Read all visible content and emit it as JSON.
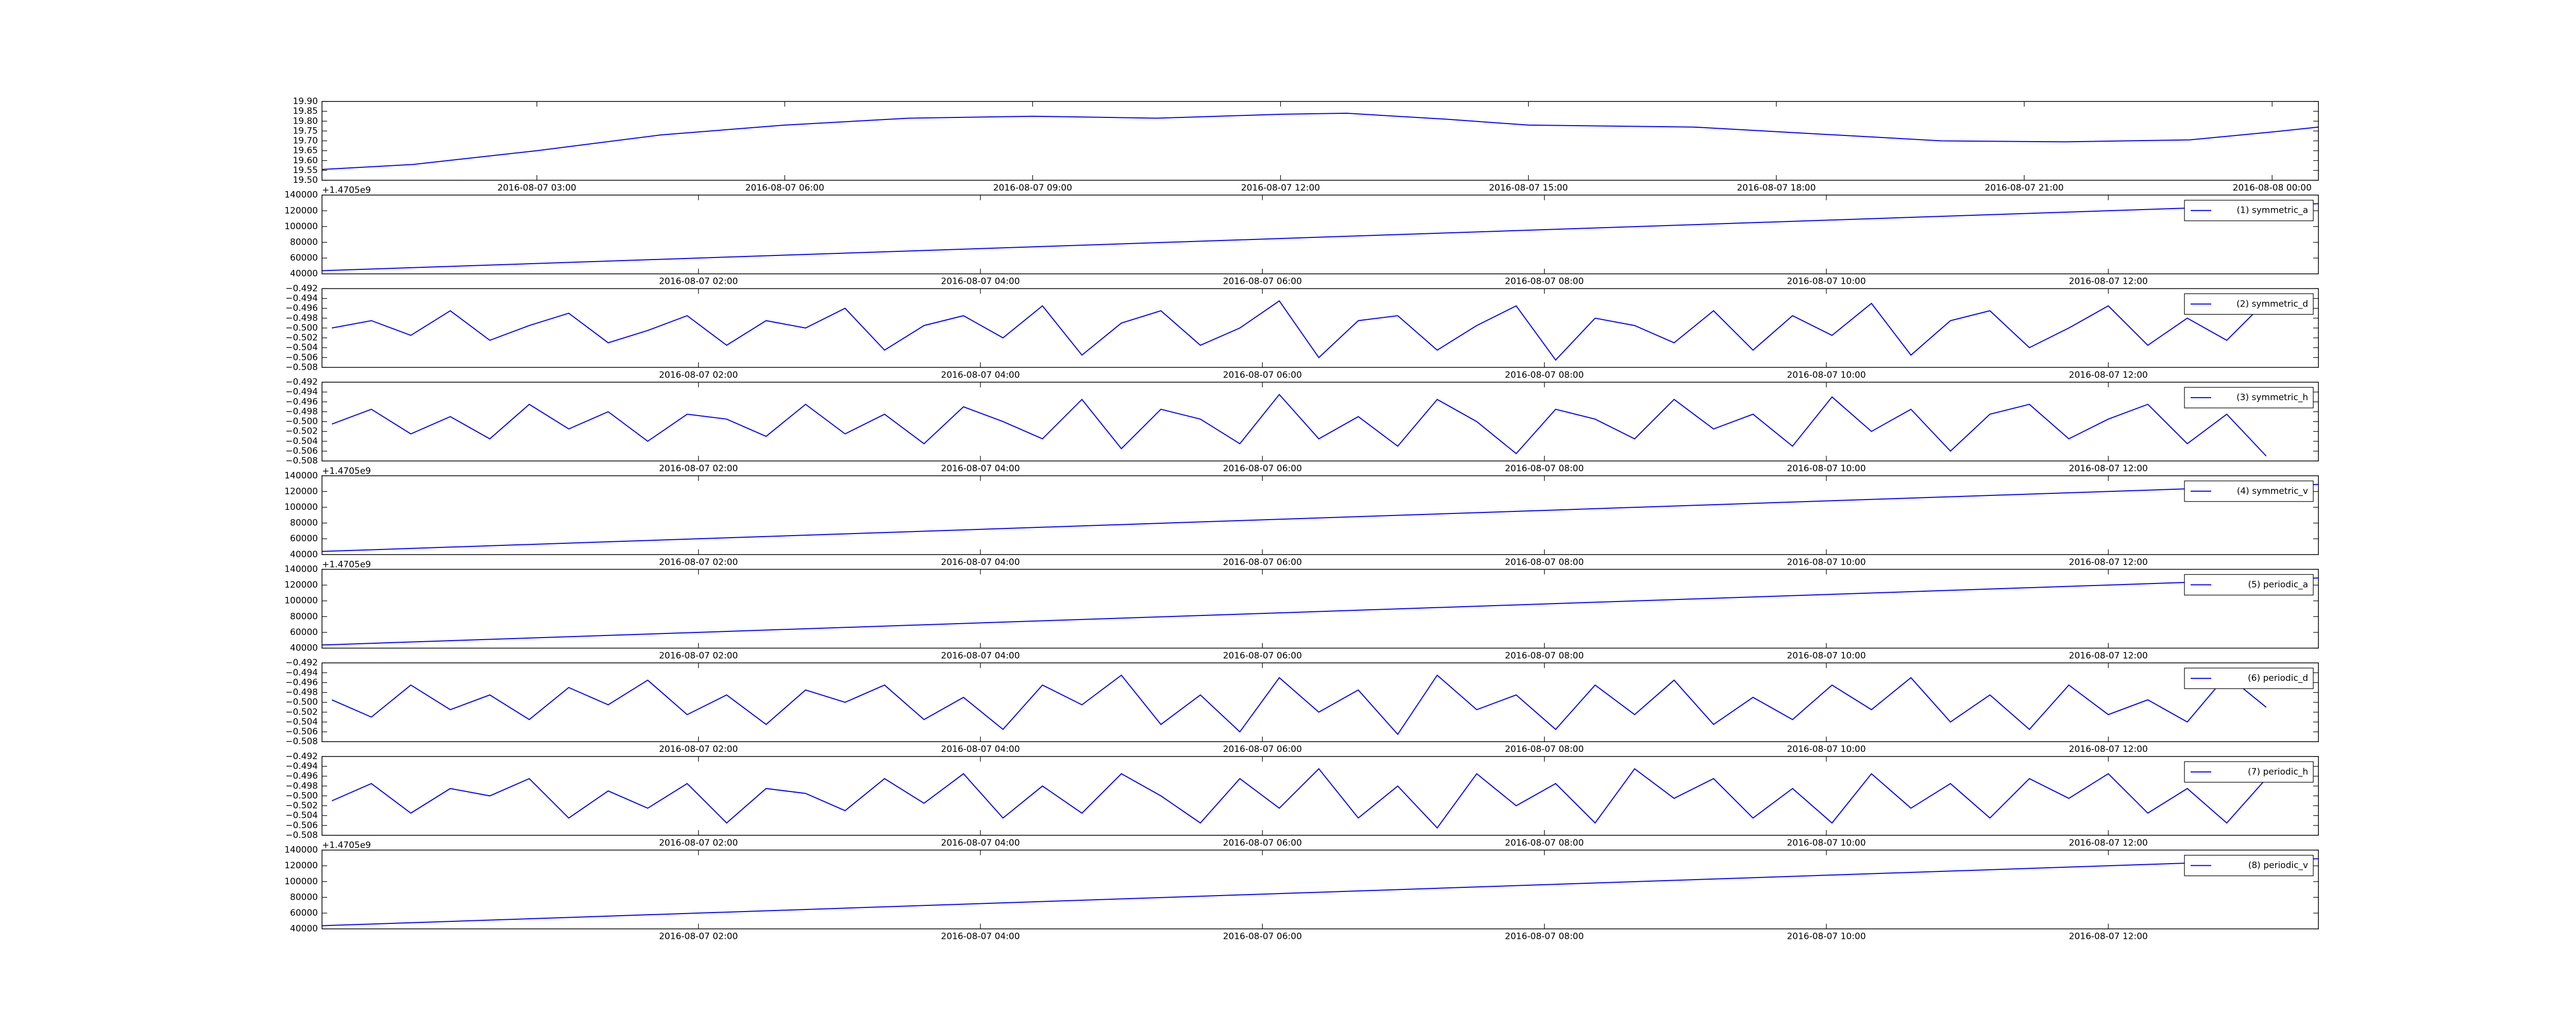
{
  "chart_data": [
    {
      "type": "line",
      "xlim": [
        0.4,
        24.56
      ],
      "ylim": [
        19.5,
        19.9
      ],
      "x": [
        0.4,
        1.5,
        3,
        4.5,
        6,
        7.5,
        9,
        10.5,
        12,
        12.8,
        14,
        15,
        17,
        18.5,
        20,
        21.5,
        23,
        24,
        24.56
      ],
      "series": [
        {
          "color": "#0000ff",
          "values": [
            19.555,
            19.58,
            19.65,
            19.73,
            19.78,
            19.815,
            19.825,
            19.815,
            19.835,
            19.84,
            19.81,
            19.78,
            19.77,
            19.735,
            19.7,
            19.695,
            19.705,
            19.745,
            19.77
          ]
        }
      ],
      "yticks": [
        {
          "value": 19.5,
          "label": "19.50"
        },
        {
          "value": 19.55,
          "label": "19.55"
        },
        {
          "value": 19.6,
          "label": "19.60"
        },
        {
          "value": 19.65,
          "label": "19.65"
        },
        {
          "value": 19.7,
          "label": "19.70"
        },
        {
          "value": 19.75,
          "label": "19.75"
        },
        {
          "value": 19.8,
          "label": "19.80"
        },
        {
          "value": 19.85,
          "label": "19.85"
        },
        {
          "value": 19.9,
          "label": "19.90"
        }
      ],
      "xticks": [
        {
          "value": 3,
          "label": "2016-08-07 03:00"
        },
        {
          "value": 6,
          "label": "2016-08-07 06:00"
        },
        {
          "value": 9,
          "label": "2016-08-07 09:00"
        },
        {
          "value": 12,
          "label": "2016-08-07 12:00"
        },
        {
          "value": 15,
          "label": "2016-08-07 15:00"
        },
        {
          "value": 18,
          "label": "2016-08-07 18:00"
        },
        {
          "value": 21,
          "label": "2016-08-07 21:00"
        },
        {
          "value": 24,
          "label": "2016-08-08 00:00"
        }
      ]
    },
    {
      "type": "line",
      "xlim": [
        -0.67,
        13.49
      ],
      "ylim": [
        40000,
        140000
      ],
      "offset_text": "+1.4705e9",
      "legend": "upper right",
      "x": [
        -0.67,
        13.49
      ],
      "series": [
        {
          "name": "(1) symmetric_a",
          "color": "#0000ff",
          "values": [
            44000,
            129000
          ]
        }
      ],
      "yticks": [
        40000,
        60000,
        80000,
        100000,
        120000,
        140000
      ],
      "xticks": [
        {
          "value": 2,
          "label": "2016-08-07 02:00"
        },
        {
          "value": 4,
          "label": "2016-08-07 04:00"
        },
        {
          "value": 6,
          "label": "2016-08-07 06:00"
        },
        {
          "value": 8,
          "label": "2016-08-07 08:00"
        },
        {
          "value": 10,
          "label": "2016-08-07 10:00"
        },
        {
          "value": 12,
          "label": "2016-08-07 12:00"
        }
      ]
    },
    {
      "type": "line",
      "xlim": [
        -0.67,
        13.49
      ],
      "ylim": [
        -0.508,
        -0.492
      ],
      "legend": "upper right",
      "x": [
        -0.6,
        -0.32,
        -0.04,
        0.24,
        0.52,
        0.8,
        1.08,
        1.36,
        1.64,
        1.92,
        2.2,
        2.48,
        2.76,
        3.04,
        3.32,
        3.6,
        3.88,
        4.16,
        4.44,
        4.72,
        5,
        5.28,
        5.56,
        5.84,
        6.12,
        6.4,
        6.68,
        6.96,
        7.24,
        7.52,
        7.8,
        8.08,
        8.36,
        8.64,
        8.92,
        9.2,
        9.48,
        9.76,
        10.04,
        10.32,
        10.6,
        10.88,
        11.16,
        11.44,
        11.72,
        12,
        12.28,
        12.56,
        12.84,
        13.12
      ],
      "series": [
        {
          "name": "(2) symmetric_d",
          "color": "#0000ff",
          "values": [
            -0.5,
            -0.4985,
            -0.5015,
            -0.4965,
            -0.5025,
            -0.4995,
            -0.497,
            -0.503,
            -0.5005,
            -0.4975,
            -0.5035,
            -0.4985,
            -0.5,
            -0.496,
            -0.5045,
            -0.4995,
            -0.4975,
            -0.502,
            -0.4955,
            -0.5055,
            -0.499,
            -0.4965,
            -0.5035,
            -0.5,
            -0.4945,
            -0.506,
            -0.4985,
            -0.4975,
            -0.5045,
            -0.4995,
            -0.4955,
            -0.5065,
            -0.498,
            -0.4995,
            -0.503,
            -0.4965,
            -0.5045,
            -0.4975,
            -0.5015,
            -0.495,
            -0.5055,
            -0.4985,
            -0.4965,
            -0.504,
            -0.5,
            -0.4955,
            -0.5035,
            -0.498,
            -0.5025,
            -0.4945
          ]
        }
      ],
      "yticks": [
        {
          "value": -0.508,
          "label": "−0.508"
        },
        {
          "value": -0.506,
          "label": "−0.506"
        },
        {
          "value": -0.504,
          "label": "−0.504"
        },
        {
          "value": -0.502,
          "label": "−0.502"
        },
        {
          "value": -0.5,
          "label": "−0.500"
        },
        {
          "value": -0.498,
          "label": "−0.498"
        },
        {
          "value": -0.496,
          "label": "−0.496"
        },
        {
          "value": -0.494,
          "label": "−0.494"
        },
        {
          "value": -0.492,
          "label": "−0.492"
        }
      ],
      "xticks": [
        {
          "value": 2,
          "label": "2016-08-07 02:00"
        },
        {
          "value": 4,
          "label": "2016-08-07 04:00"
        },
        {
          "value": 6,
          "label": "2016-08-07 06:00"
        },
        {
          "value": 8,
          "label": "2016-08-07 08:00"
        },
        {
          "value": 10,
          "label": "2016-08-07 10:00"
        },
        {
          "value": 12,
          "label": "2016-08-07 12:00"
        }
      ]
    },
    {
      "type": "line",
      "xlim": [
        -0.67,
        13.49
      ],
      "ylim": [
        -0.508,
        -0.492
      ],
      "legend": "upper right",
      "x": [
        -0.6,
        -0.32,
        -0.04,
        0.24,
        0.52,
        0.8,
        1.08,
        1.36,
        1.64,
        1.92,
        2.2,
        2.48,
        2.76,
        3.04,
        3.32,
        3.6,
        3.88,
        4.16,
        4.44,
        4.72,
        5,
        5.28,
        5.56,
        5.84,
        6.12,
        6.4,
        6.68,
        6.96,
        7.24,
        7.52,
        7.8,
        8.08,
        8.36,
        8.64,
        8.92,
        9.2,
        9.48,
        9.76,
        10.04,
        10.32,
        10.6,
        10.88,
        11.16,
        11.44,
        11.72,
        12,
        12.28,
        12.56,
        12.84,
        13.12
      ],
      "series": [
        {
          "name": "(3) symmetric_h",
          "color": "#0000ff",
          "values": [
            -0.5005,
            -0.4975,
            -0.5025,
            -0.499,
            -0.5035,
            -0.4965,
            -0.5015,
            -0.498,
            -0.504,
            -0.4985,
            -0.4995,
            -0.503,
            -0.4965,
            -0.5025,
            -0.4985,
            -0.5045,
            -0.497,
            -0.5,
            -0.5035,
            -0.4955,
            -0.5055,
            -0.4975,
            -0.4995,
            -0.5045,
            -0.4945,
            -0.5035,
            -0.499,
            -0.505,
            -0.4955,
            -0.5,
            -0.5065,
            -0.4975,
            -0.4995,
            -0.5035,
            -0.4955,
            -0.5015,
            -0.4985,
            -0.505,
            -0.495,
            -0.502,
            -0.4975,
            -0.506,
            -0.4985,
            -0.4965,
            -0.5035,
            -0.4995,
            -0.4965,
            -0.5045,
            -0.4985,
            -0.507
          ]
        }
      ],
      "yticks": [
        {
          "value": -0.508,
          "label": "−0.508"
        },
        {
          "value": -0.506,
          "label": "−0.506"
        },
        {
          "value": -0.504,
          "label": "−0.504"
        },
        {
          "value": -0.502,
          "label": "−0.502"
        },
        {
          "value": -0.5,
          "label": "−0.500"
        },
        {
          "value": -0.498,
          "label": "−0.498"
        },
        {
          "value": -0.496,
          "label": "−0.496"
        },
        {
          "value": -0.494,
          "label": "−0.494"
        },
        {
          "value": -0.492,
          "label": "−0.492"
        }
      ],
      "xticks": [
        {
          "value": 2,
          "label": "2016-08-07 02:00"
        },
        {
          "value": 4,
          "label": "2016-08-07 04:00"
        },
        {
          "value": 6,
          "label": "2016-08-07 06:00"
        },
        {
          "value": 8,
          "label": "2016-08-07 08:00"
        },
        {
          "value": 10,
          "label": "2016-08-07 10:00"
        },
        {
          "value": 12,
          "label": "2016-08-07 12:00"
        }
      ]
    },
    {
      "type": "line",
      "xlim": [
        -0.67,
        13.49
      ],
      "ylim": [
        40000,
        140000
      ],
      "offset_text": "+1.4705e9",
      "legend": "upper right",
      "x": [
        -0.67,
        13.49
      ],
      "series": [
        {
          "name": "(4) symmetric_v",
          "color": "#0000ff",
          "values": [
            44000,
            129000
          ]
        }
      ],
      "yticks": [
        40000,
        60000,
        80000,
        100000,
        120000,
        140000
      ],
      "xticks": [
        {
          "value": 2,
          "label": "2016-08-07 02:00"
        },
        {
          "value": 4,
          "label": "2016-08-07 04:00"
        },
        {
          "value": 6,
          "label": "2016-08-07 06:00"
        },
        {
          "value": 8,
          "label": "2016-08-07 08:00"
        },
        {
          "value": 10,
          "label": "2016-08-07 10:00"
        },
        {
          "value": 12,
          "label": "2016-08-07 12:00"
        }
      ]
    },
    {
      "type": "line",
      "xlim": [
        -0.67,
        13.49
      ],
      "ylim": [
        40000,
        140000
      ],
      "offset_text": "+1.4705e9",
      "legend": "upper right",
      "x": [
        -0.67,
        13.49
      ],
      "series": [
        {
          "name": "(5) periodic_a",
          "color": "#0000ff",
          "values": [
            44000,
            129000
          ]
        }
      ],
      "yticks": [
        40000,
        60000,
        80000,
        100000,
        120000,
        140000
      ],
      "xticks": [
        {
          "value": 2,
          "label": "2016-08-07 02:00"
        },
        {
          "value": 4,
          "label": "2016-08-07 04:00"
        },
        {
          "value": 6,
          "label": "2016-08-07 06:00"
        },
        {
          "value": 8,
          "label": "2016-08-07 08:00"
        },
        {
          "value": 10,
          "label": "2016-08-07 10:00"
        },
        {
          "value": 12,
          "label": "2016-08-07 12:00"
        }
      ]
    },
    {
      "type": "line",
      "xlim": [
        -0.67,
        13.49
      ],
      "ylim": [
        -0.508,
        -0.492
      ],
      "legend": "upper right",
      "x": [
        -0.6,
        -0.32,
        -0.04,
        0.24,
        0.52,
        0.8,
        1.08,
        1.36,
        1.64,
        1.92,
        2.2,
        2.48,
        2.76,
        3.04,
        3.32,
        3.6,
        3.88,
        4.16,
        4.44,
        4.72,
        5,
        5.28,
        5.56,
        5.84,
        6.12,
        6.4,
        6.68,
        6.96,
        7.24,
        7.52,
        7.8,
        8.08,
        8.36,
        8.64,
        8.92,
        9.2,
        9.48,
        9.76,
        10.04,
        10.32,
        10.6,
        10.88,
        11.16,
        11.44,
        11.72,
        12,
        12.28,
        12.56,
        12.84,
        13.12
      ],
      "series": [
        {
          "name": "(6) periodic_d",
          "color": "#0000ff",
          "values": [
            -0.4995,
            -0.503,
            -0.4965,
            -0.5015,
            -0.4985,
            -0.5035,
            -0.497,
            -0.5005,
            -0.4955,
            -0.5025,
            -0.4985,
            -0.5045,
            -0.4975,
            -0.5,
            -0.4965,
            -0.5035,
            -0.499,
            -0.5055,
            -0.4965,
            -0.5005,
            -0.4945,
            -0.5045,
            -0.4985,
            -0.506,
            -0.495,
            -0.502,
            -0.4975,
            -0.5065,
            -0.4945,
            -0.5015,
            -0.4985,
            -0.5055,
            -0.4965,
            -0.5025,
            -0.4955,
            -0.5045,
            -0.499,
            -0.5035,
            -0.4965,
            -0.5015,
            -0.495,
            -0.504,
            -0.4985,
            -0.5055,
            -0.4965,
            -0.5025,
            -0.4995,
            -0.504,
            -0.4945,
            -0.501
          ]
        }
      ],
      "yticks": [
        {
          "value": -0.508,
          "label": "−0.508"
        },
        {
          "value": -0.506,
          "label": "−0.506"
        },
        {
          "value": -0.504,
          "label": "−0.504"
        },
        {
          "value": -0.502,
          "label": "−0.502"
        },
        {
          "value": -0.5,
          "label": "−0.500"
        },
        {
          "value": -0.498,
          "label": "−0.498"
        },
        {
          "value": -0.496,
          "label": "−0.496"
        },
        {
          "value": -0.494,
          "label": "−0.494"
        },
        {
          "value": -0.492,
          "label": "−0.492"
        }
      ],
      "xticks": [
        {
          "value": 2,
          "label": "2016-08-07 02:00"
        },
        {
          "value": 4,
          "label": "2016-08-07 04:00"
        },
        {
          "value": 6,
          "label": "2016-08-07 06:00"
        },
        {
          "value": 8,
          "label": "2016-08-07 08:00"
        },
        {
          "value": 10,
          "label": "2016-08-07 10:00"
        },
        {
          "value": 12,
          "label": "2016-08-07 12:00"
        }
      ]
    },
    {
      "type": "line",
      "xlim": [
        -0.67,
        13.49
      ],
      "ylim": [
        -0.508,
        -0.492
      ],
      "legend": "upper right",
      "x": [
        -0.6,
        -0.32,
        -0.04,
        0.24,
        0.52,
        0.8,
        1.08,
        1.36,
        1.64,
        1.92,
        2.2,
        2.48,
        2.76,
        3.04,
        3.32,
        3.6,
        3.88,
        4.16,
        4.44,
        4.72,
        5,
        5.28,
        5.56,
        5.84,
        6.12,
        6.4,
        6.68,
        6.96,
        7.24,
        7.52,
        7.8,
        8.08,
        8.36,
        8.64,
        8.92,
        9.2,
        9.48,
        9.76,
        10.04,
        10.32,
        10.6,
        10.88,
        11.16,
        11.44,
        11.72,
        12,
        12.28,
        12.56,
        12.84,
        13.12
      ],
      "series": [
        {
          "name": "(7) periodic_h",
          "color": "#0000ff",
          "values": [
            -0.501,
            -0.4975,
            -0.5035,
            -0.4985,
            -0.5,
            -0.4965,
            -0.5045,
            -0.499,
            -0.5025,
            -0.4975,
            -0.5055,
            -0.4985,
            -0.4995,
            -0.503,
            -0.4965,
            -0.5015,
            -0.4955,
            -0.5045,
            -0.498,
            -0.5035,
            -0.4955,
            -0.5,
            -0.5055,
            -0.4965,
            -0.5025,
            -0.4945,
            -0.5045,
            -0.498,
            -0.5065,
            -0.4955,
            -0.502,
            -0.4975,
            -0.5055,
            -0.4945,
            -0.5005,
            -0.4965,
            -0.5045,
            -0.4985,
            -0.5055,
            -0.4955,
            -0.5025,
            -0.4975,
            -0.5045,
            -0.4965,
            -0.5005,
            -0.4955,
            -0.5035,
            -0.4985,
            -0.5055,
            -0.4965
          ]
        }
      ],
      "yticks": [
        {
          "value": -0.508,
          "label": "−0.508"
        },
        {
          "value": -0.506,
          "label": "−0.506"
        },
        {
          "value": -0.504,
          "label": "−0.504"
        },
        {
          "value": -0.502,
          "label": "−0.502"
        },
        {
          "value": -0.5,
          "label": "−0.500"
        },
        {
          "value": -0.498,
          "label": "−0.498"
        },
        {
          "value": -0.496,
          "label": "−0.496"
        },
        {
          "value": -0.494,
          "label": "−0.494"
        },
        {
          "value": -0.492,
          "label": "−0.492"
        }
      ],
      "xticks": [
        {
          "value": 2,
          "label": "2016-08-07 02:00"
        },
        {
          "value": 4,
          "label": "2016-08-07 04:00"
        },
        {
          "value": 6,
          "label": "2016-08-07 06:00"
        },
        {
          "value": 8,
          "label": "2016-08-07 08:00"
        },
        {
          "value": 10,
          "label": "2016-08-07 10:00"
        },
        {
          "value": 12,
          "label": "2016-08-07 12:00"
        }
      ]
    },
    {
      "type": "line",
      "xlim": [
        -0.67,
        13.49
      ],
      "ylim": [
        40000,
        140000
      ],
      "offset_text": "+1.4705e9",
      "legend": "upper right",
      "x": [
        -0.67,
        13.49
      ],
      "series": [
        {
          "name": "(8) periodic_v",
          "color": "#0000ff",
          "values": [
            44000,
            129000
          ]
        }
      ],
      "yticks": [
        40000,
        60000,
        80000,
        100000,
        120000,
        140000
      ],
      "xticks": [
        {
          "value": 2,
          "label": "2016-08-07 02:00"
        },
        {
          "value": 4,
          "label": "2016-08-07 04:00"
        },
        {
          "value": 6,
          "label": "2016-08-07 06:00"
        },
        {
          "value": 8,
          "label": "2016-08-07 08:00"
        },
        {
          "value": 10,
          "label": "2016-08-07 10:00"
        },
        {
          "value": 12,
          "label": "2016-08-07 12:00"
        }
      ]
    }
  ]
}
